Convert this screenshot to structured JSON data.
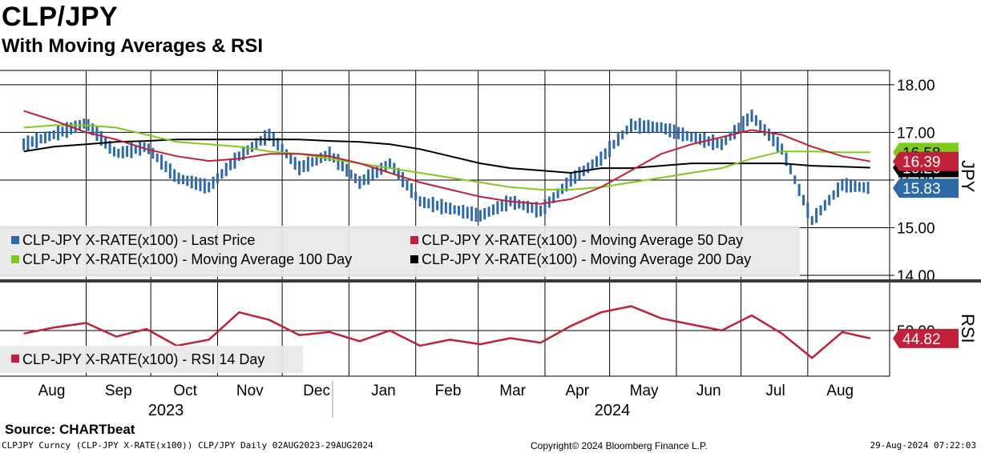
{
  "title": "CLP/JPY",
  "subtitle": "With Moving Averages & RSI",
  "source": "Source:  CHARTbeat",
  "footer": {
    "left": "CLPJPY Curncy (CLP-JPY X-RATE(x100)) CLP/JPY  Daily 02AUG2023-29AUG2024",
    "center": "Copyright© 2024 Bloomberg Finance L.P.",
    "right": "29-Aug-2024 07:22:03"
  },
  "colors": {
    "price": "#2e6aa6",
    "ma50": "#c0203a",
    "ma100": "#7ecb1e",
    "ma200": "#000000",
    "rsi": "#c0203a"
  },
  "chart_data": [
    {
      "type": "line",
      "panel": "price",
      "ylabel": "JPY",
      "ylim": [
        13.9,
        18.3
      ],
      "yticks": [
        "14.00",
        "15.00",
        "16.00",
        "17.00",
        "18.00"
      ],
      "grid": true,
      "legend_position": "bottom-left",
      "x_tick_labels": [
        "Aug",
        "Sep",
        "Oct",
        "Nov",
        "Dec",
        "Jan",
        "Feb",
        "Mar",
        "Apr",
        "May",
        "Jun",
        "Jul",
        "Aug"
      ],
      "x_year_labels": [
        "2023",
        "2024"
      ],
      "x": [
        "2023-08-02",
        "2023-08-16",
        "2023-08-31",
        "2023-09-14",
        "2023-09-28",
        "2023-10-12",
        "2023-10-27",
        "2023-11-10",
        "2023-11-24",
        "2023-12-08",
        "2023-12-22",
        "2024-01-05",
        "2024-01-19",
        "2024-02-02",
        "2024-02-16",
        "2024-03-01",
        "2024-03-15",
        "2024-03-29",
        "2024-04-12",
        "2024-04-26",
        "2024-05-10",
        "2024-05-24",
        "2024-06-07",
        "2024-06-21",
        "2024-07-05",
        "2024-07-19",
        "2024-08-02",
        "2024-08-16",
        "2024-08-29"
      ],
      "series": [
        {
          "name": "CLP-JPY X-RATE(x100)  -  Last Price",
          "color": "#2e6aa6",
          "values": [
            16.75,
            16.95,
            17.2,
            16.55,
            16.7,
            16.05,
            15.85,
            16.5,
            16.95,
            16.25,
            16.55,
            15.95,
            16.35,
            15.55,
            15.4,
            15.25,
            15.55,
            15.35,
            16.0,
            16.45,
            17.15,
            17.1,
            16.9,
            16.75,
            17.35,
            16.65,
            15.15,
            15.9,
            15.83
          ],
          "last_value_tag": "15.83"
        },
        {
          "name": "CLP-JPY X-RATE(x100)  -  Moving Average 50 Day",
          "color": "#c0203a",
          "values": [
            17.45,
            17.25,
            17.0,
            16.85,
            16.65,
            16.5,
            16.4,
            16.45,
            16.55,
            16.55,
            16.5,
            16.35,
            16.15,
            15.95,
            15.8,
            15.65,
            15.55,
            15.5,
            15.6,
            15.85,
            16.2,
            16.55,
            16.75,
            16.9,
            17.05,
            16.95,
            16.7,
            16.5,
            16.39
          ],
          "last_value_tag": "16.39"
        },
        {
          "name": "CLP-JPY X-RATE(x100)  -  Moving Average 100 Day",
          "color": "#7ecb1e",
          "values": [
            17.1,
            17.15,
            17.15,
            17.1,
            16.95,
            16.8,
            16.75,
            16.7,
            16.6,
            16.55,
            16.45,
            16.35,
            16.25,
            16.15,
            16.05,
            15.95,
            15.85,
            15.8,
            15.8,
            15.85,
            15.95,
            16.05,
            16.15,
            16.25,
            16.45,
            16.6,
            16.6,
            16.58,
            16.58
          ],
          "last_value_tag": "16.58"
        },
        {
          "name": "CLP-JPY X-RATE(x100)  -  Moving Average 200 Day",
          "color": "#000000",
          "values": [
            16.6,
            16.7,
            16.75,
            16.8,
            16.82,
            16.85,
            16.85,
            16.85,
            16.85,
            16.85,
            16.82,
            16.8,
            16.75,
            16.65,
            16.5,
            16.35,
            16.25,
            16.2,
            16.15,
            16.25,
            16.25,
            16.3,
            16.35,
            16.35,
            16.35,
            16.35,
            16.3,
            16.28,
            16.26
          ],
          "last_value_tag": "16.26"
        }
      ]
    },
    {
      "type": "line",
      "panel": "rsi",
      "ylabel": "RSI",
      "ylim": [
        20,
        80
      ],
      "yticks": [
        "50.00"
      ],
      "grid": true,
      "legend_position": "bottom-left",
      "x": [
        "2023-08-02",
        "2023-08-16",
        "2023-08-31",
        "2023-09-14",
        "2023-09-28",
        "2023-10-12",
        "2023-10-27",
        "2023-11-10",
        "2023-11-24",
        "2023-12-08",
        "2023-12-22",
        "2024-01-05",
        "2024-01-19",
        "2024-02-02",
        "2024-02-16",
        "2024-03-01",
        "2024-03-15",
        "2024-03-29",
        "2024-04-12",
        "2024-04-26",
        "2024-05-10",
        "2024-05-24",
        "2024-06-07",
        "2024-06-21",
        "2024-07-05",
        "2024-07-19",
        "2024-08-02",
        "2024-08-16",
        "2024-08-29"
      ],
      "series": [
        {
          "name": "CLP-JPY X-RATE(x100)  -  RSI 14 Day",
          "color": "#c0203a",
          "values": [
            48,
            52,
            55,
            46,
            51,
            40,
            44,
            62,
            57,
            47,
            49,
            43,
            50,
            40,
            44,
            41,
            45,
            42,
            53,
            62,
            66,
            58,
            54,
            50,
            60,
            48,
            32,
            49,
            44.82
          ],
          "last_value_tag": "44.82"
        }
      ]
    }
  ]
}
